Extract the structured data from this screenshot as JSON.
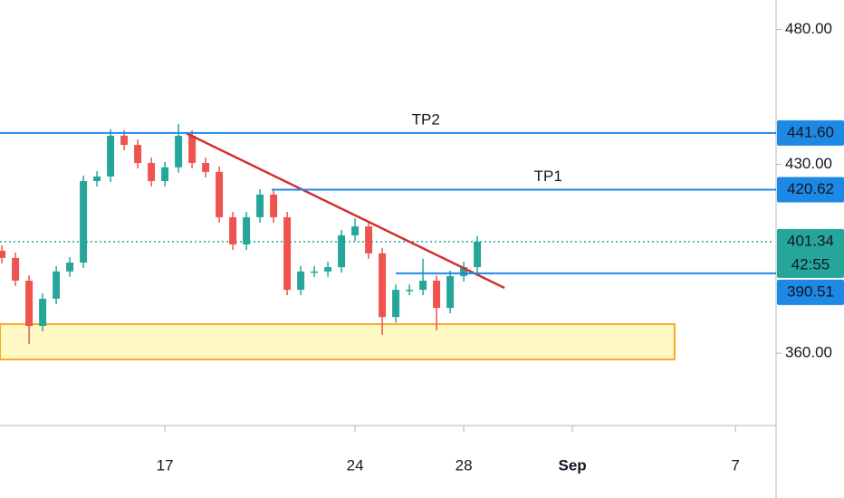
{
  "chart_data": {
    "type": "candlestick",
    "x": [
      11.0,
      11.5,
      12.0,
      12.5,
      13.0,
      13.5,
      14.0,
      14.5,
      15.0,
      15.5,
      16.0,
      16.5,
      17.0,
      17.5,
      18.0,
      18.5,
      19.0,
      19.5,
      20.0,
      20.5,
      21.0,
      21.5,
      22.0,
      22.5,
      23.0,
      23.5,
      24.0,
      24.5,
      25.0,
      25.5,
      26.0,
      26.5,
      27.0,
      27.5,
      28.0,
      28.5
    ],
    "open": [
      398.0,
      395.3,
      386.9,
      370.1,
      380.2,
      390.3,
      393.6,
      423.8,
      425.5,
      440.6,
      437.2,
      430.5,
      423.8,
      428.9,
      440.6,
      430.5,
      427.2,
      410.4,
      400.3,
      410.4,
      418.8,
      410.4,
      383.5,
      390.3,
      390.3,
      391.9,
      403.7,
      407.0,
      397.0,
      373.4,
      383.5,
      383.5,
      386.9,
      376.8,
      388.6,
      391.9
    ],
    "high": [
      400.0,
      397.3,
      388.9,
      382.2,
      392.3,
      395.6,
      425.8,
      427.5,
      443.0,
      442.6,
      439.2,
      432.5,
      430.9,
      445.0,
      442.6,
      432.5,
      429.2,
      412.4,
      412.4,
      420.8,
      420.8,
      412.4,
      392.3,
      392.3,
      393.9,
      405.7,
      410.0,
      409.0,
      399.0,
      385.5,
      385.5,
      395.0,
      388.9,
      390.6,
      393.9,
      403.5
    ],
    "low": [
      393.3,
      384.9,
      363.4,
      368.1,
      378.2,
      388.3,
      391.6,
      421.8,
      423.5,
      435.2,
      428.5,
      421.8,
      421.8,
      426.9,
      428.5,
      425.2,
      408.4,
      398.3,
      398.3,
      408.4,
      408.4,
      381.5,
      381.5,
      388.3,
      388.3,
      389.9,
      401.7,
      395.0,
      366.8,
      371.4,
      381.5,
      381.5,
      368.5,
      374.8,
      386.6,
      389.9
    ],
    "close": [
      395.3,
      386.9,
      370.1,
      380.2,
      390.3,
      393.6,
      423.8,
      425.5,
      440.6,
      437.2,
      430.5,
      423.8,
      428.9,
      440.6,
      430.5,
      427.2,
      410.4,
      400.3,
      410.4,
      418.8,
      410.4,
      383.5,
      390.3,
      390.3,
      391.9,
      403.7,
      407.0,
      397.0,
      373.4,
      383.5,
      383.5,
      386.9,
      376.8,
      388.6,
      391.9,
      401.34
    ],
    "up_color": "#26a69a",
    "down_color": "#ef5350",
    "xlim": [
      10.93,
      39.43
    ],
    "ylim": [
      333.2,
      490.9
    ],
    "xticks": [
      17,
      24,
      28,
      {
        "value": 32,
        "label": "Sep"
      },
      {
        "value": 38,
        "label": "7"
      }
    ],
    "yticks": [
      {
        "value": 480,
        "label": "480.00"
      },
      {
        "value": 430,
        "label": "430.00"
      },
      {
        "value": 360,
        "label": "360.00"
      }
    ],
    "levels": [
      {
        "name": "TP2",
        "value": 441.6,
        "label": "441.60",
        "color": "#1e88e5"
      },
      {
        "name": "TP1",
        "value": 420.62,
        "label": "420.62",
        "x_start": 20.93,
        "color": "#1e88e5"
      },
      {
        "value": 389.6,
        "x_start": 25.5,
        "color": "#1e88e5"
      }
    ],
    "last_price": {
      "value": 401.34,
      "label": "401.34",
      "countdown": "42:55",
      "color": "#26a69a"
    },
    "price_labels": [
      {
        "value": 390.51,
        "label": "390.51",
        "color": "#1e88e5"
      }
    ],
    "trendline": {
      "x": [
        17.77,
        29.5
      ],
      "y": [
        441.6,
        384.2
      ],
      "color": "#d32f2f"
    },
    "zone": {
      "top": 370.8,
      "bottom": 357.7,
      "x_end": 35.76,
      "color": "#fff9c4",
      "border": "#ffa726"
    }
  }
}
